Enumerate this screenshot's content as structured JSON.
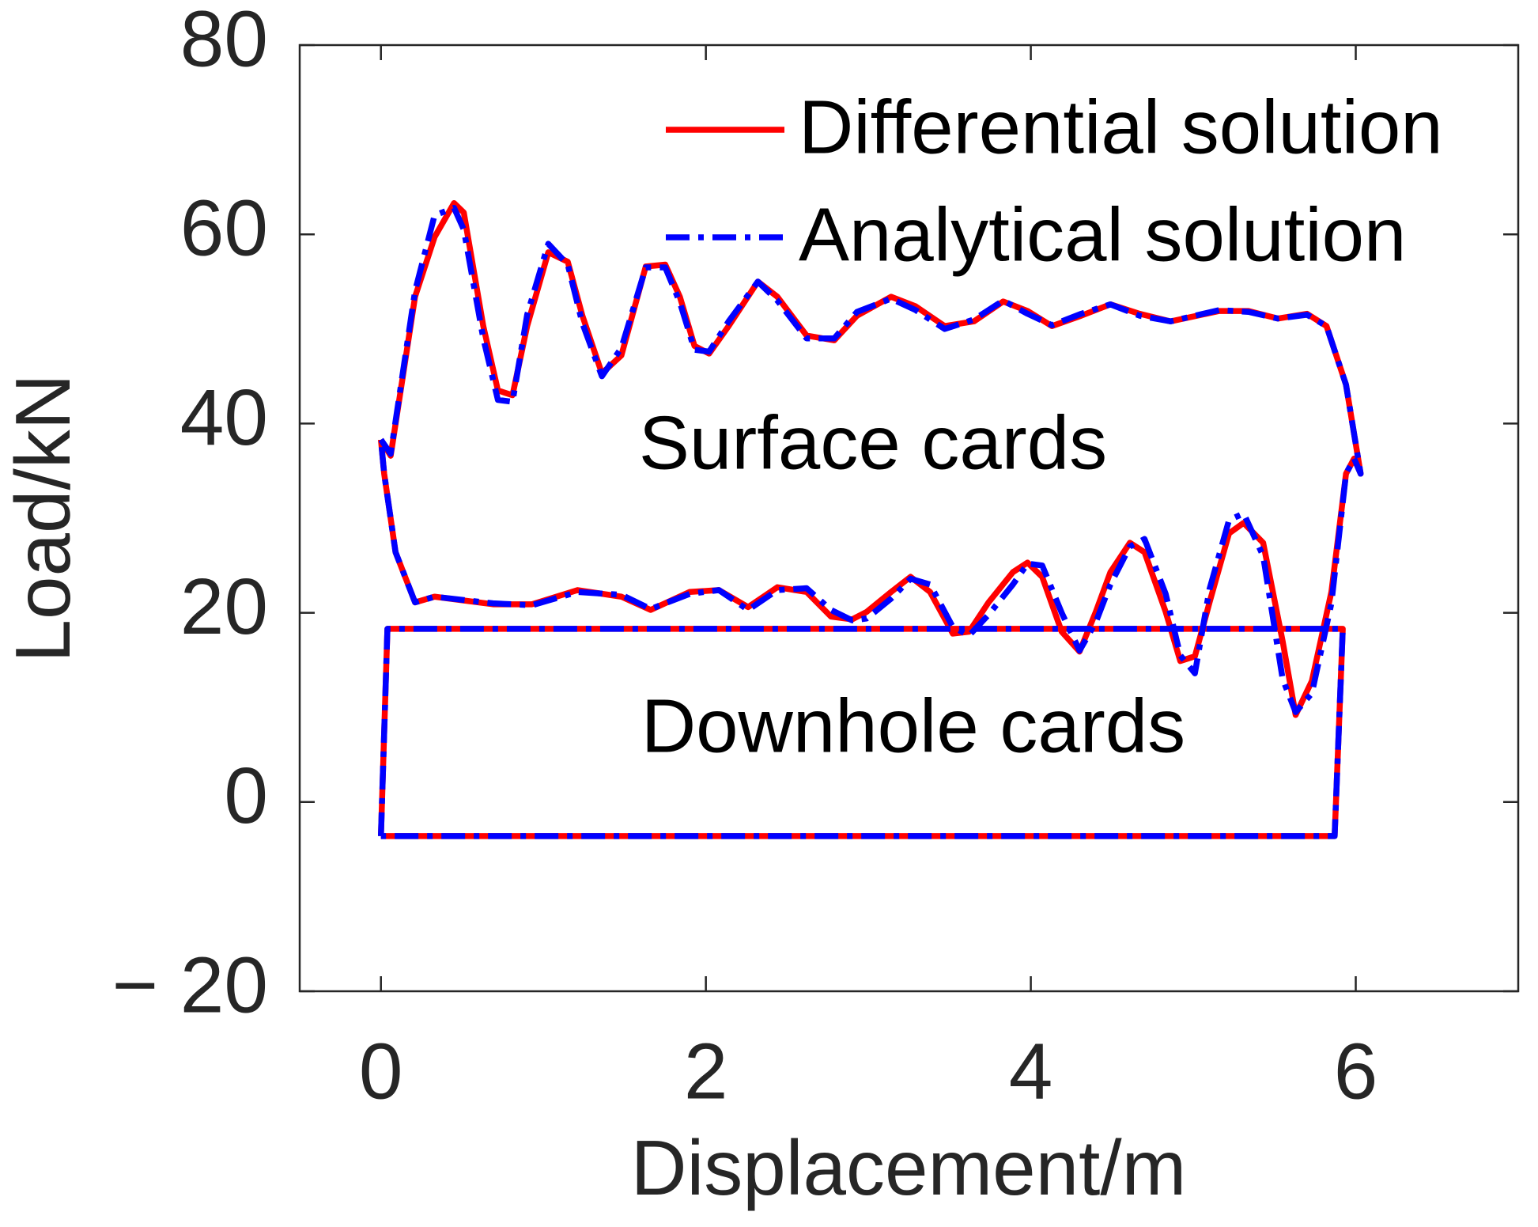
{
  "chart_data": {
    "type": "line",
    "xlabel": "Displacement/m",
    "ylabel": "Load/kN",
    "xlim": [
      -0.5,
      7
    ],
    "ylim": [
      -20,
      80
    ],
    "xticks": [
      0,
      2,
      4,
      6
    ],
    "yticks": [
      {
        "value": -20,
        "label": "− 20"
      },
      0,
      20,
      40,
      60,
      80
    ],
    "grid": false,
    "legend": "upper right",
    "annotations": [
      "Surface cards",
      "Downhole cards"
    ],
    "x": [
      0,
      0.06,
      0.21,
      0.33,
      0.45,
      0.51,
      0.63,
      0.72,
      0.81,
      0.9,
      1.03,
      1.15,
      1.24,
      1.36,
      1.48,
      1.63,
      1.75,
      1.84,
      1.93,
      2.02,
      2.14,
      2.32,
      2.44,
      2.62,
      2.79,
      2.93,
      3.14,
      3.29,
      3.47,
      3.65,
      3.83,
      3.98,
      4.13,
      4.31,
      4.49,
      4.67,
      4.86,
      5.16,
      5.34,
      5.52,
      5.7,
      5.82,
      5.94,
      6.03,
      5.99,
      5.94,
      5.85,
      5.73,
      5.63,
      5.55,
      5.43,
      5.31,
      5.22,
      5.1,
      5.01,
      4.92,
      4.83,
      4.7,
      4.61,
      4.49,
      4.4,
      4.3,
      4.19,
      4.07,
      3.98,
      3.89,
      3.74,
      3.62,
      3.52,
      3.38,
      3.26,
      3.14,
      2.99,
      2.9,
      2.77,
      2.62,
      2.44,
      2.26,
      2.08,
      1.9,
      1.66,
      1.48,
      1.21,
      0.93,
      0.69,
      0.33,
      0.21,
      0.09,
      0.02,
      0,
      null,
      0,
      0.04,
      5.92,
      5.87,
      0
    ],
    "series": [
      {
        "name": "Differential solution",
        "color": "#ff0000",
        "style": "solid",
        "values": [
          38.3,
          36.6,
          53.4,
          59.7,
          63.3,
          62.3,
          50.3,
          43.5,
          43.0,
          50.3,
          58.1,
          57.1,
          51.4,
          45.3,
          47.2,
          56.6,
          56.8,
          53.4,
          48.2,
          47.4,
          50.3,
          55.0,
          53.4,
          49.3,
          48.8,
          51.4,
          53.4,
          52.4,
          50.3,
          50.8,
          52.9,
          51.9,
          50.3,
          51.4,
          52.6,
          51.6,
          50.8,
          51.9,
          51.9,
          51.1,
          51.6,
          50.3,
          44.1,
          34.7,
          36.3,
          34.7,
          22.2,
          12.8,
          9.2,
          17.0,
          27.4,
          29.5,
          28.4,
          21.1,
          15.4,
          14.9,
          20.1,
          26.4,
          27.4,
          24.3,
          20.1,
          15.9,
          18.0,
          23.8,
          25.3,
          24.3,
          21.1,
          18.0,
          17.8,
          22.2,
          23.8,
          22.2,
          20.1,
          19.3,
          19.6,
          22.2,
          22.7,
          20.6,
          22.4,
          22.2,
          20.3,
          21.7,
          22.4,
          20.9,
          20.9,
          21.7,
          21.1,
          26.4,
          34.7,
          38.3,
          null,
          -3.6,
          18.3,
          18.3,
          -3.6,
          -3.6
        ]
      },
      {
        "name": "Analytical solution",
        "color": "#0000ff",
        "style": "dashdot",
        "values": [
          38.3,
          36.8,
          54.0,
          62.0,
          62.8,
          60.5,
          49.0,
          42.5,
          42.3,
          51.5,
          59.0,
          56.8,
          50.6,
          45.0,
          48.0,
          56.5,
          56.5,
          52.8,
          47.8,
          47.6,
          50.8,
          55.0,
          53.0,
          49.0,
          49.0,
          51.8,
          53.2,
          52.0,
          50.0,
          51.0,
          53.0,
          51.6,
          50.4,
          51.6,
          52.6,
          51.4,
          50.8,
          52.0,
          51.8,
          51.1,
          51.5,
          50.3,
          44.1,
          34.7,
          36.3,
          34.7,
          21.0,
          11.5,
          9.5,
          13.0,
          26.0,
          30.5,
          29.8,
          22.5,
          13.6,
          15.5,
          22.0,
          27.8,
          27.0,
          23.0,
          19.0,
          16.0,
          20.0,
          25.0,
          25.2,
          23.0,
          19.8,
          17.6,
          18.5,
          23.0,
          23.6,
          21.5,
          19.4,
          19.2,
          20.3,
          22.6,
          22.4,
          20.3,
          22.4,
          22.0,
          20.4,
          21.9,
          22.2,
          20.8,
          21.0,
          21.7,
          21.1,
          26.4,
          34.7,
          38.3,
          null,
          -3.6,
          18.3,
          18.3,
          -3.6,
          -3.6
        ]
      }
    ]
  }
}
